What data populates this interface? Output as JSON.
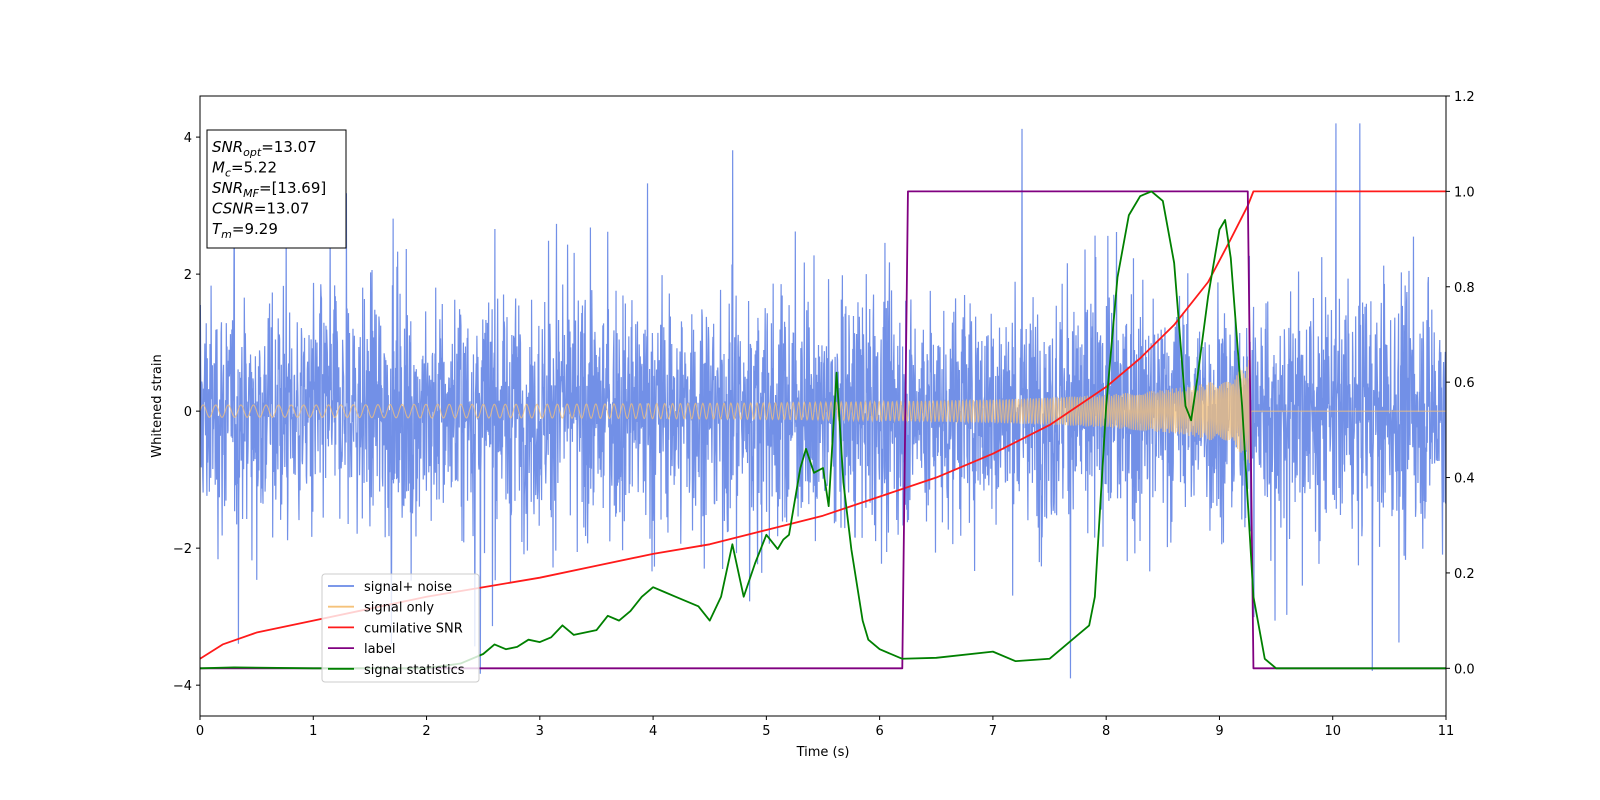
{
  "chart_data": {
    "type": "line",
    "title": "",
    "xlabel": "Time (s)",
    "ylabel": "Whitened strain",
    "xlim": [
      0,
      11
    ],
    "ylim": [
      -4.45,
      4.6
    ],
    "y2lim": [
      -0.1,
      1.2
    ],
    "xticks": [
      "0",
      "1",
      "2",
      "3",
      "4",
      "5",
      "6",
      "7",
      "8",
      "9",
      "10",
      "11"
    ],
    "yticks": [
      "−4",
      "−2",
      "0",
      "2",
      "4"
    ],
    "y2ticks": [
      "0.0",
      "0.2",
      "0.4",
      "0.6",
      "0.8",
      "1.0",
      "1.2"
    ],
    "grid": false,
    "legend_position": "lower-left",
    "info_box": {
      "position": "top-left",
      "lines": [
        {
          "sym": "SNR",
          "sub": "opt",
          "value": "=13.07"
        },
        {
          "sym": "M",
          "sub": "c",
          "value": "=5.22"
        },
        {
          "sym": "SNR",
          "sub": "MF",
          "value": "=[13.69]"
        },
        {
          "sym": "CSNR",
          "sub": "",
          "value": "=13.07"
        },
        {
          "sym": "T",
          "sub": "m",
          "value": "=9.29"
        }
      ]
    },
    "series": [
      {
        "name": "signal+ noise",
        "color": "#6a8ae6",
        "axis": "left",
        "style": "noise",
        "x_range": [
          0,
          11
        ],
        "baseline_band": [
          -1.8,
          1.8
        ],
        "peak_range": [
          -3.9,
          4.2
        ]
      },
      {
        "name": "signal only",
        "color": "#f5c27a",
        "axis": "left",
        "style": "chirp",
        "envelope": {
          "x": [
            0,
            1,
            2,
            3,
            4,
            5,
            6,
            7,
            7.5,
            8,
            8.5,
            8.8,
            9.0,
            9.1,
            9.2,
            9.28
          ],
          "amp": [
            0.09,
            0.09,
            0.1,
            0.1,
            0.11,
            0.12,
            0.14,
            0.17,
            0.2,
            0.24,
            0.31,
            0.38,
            0.46,
            0.52,
            0.62,
            0.8
          ]
        },
        "after_merger_value": 0
      },
      {
        "name": "cumilative SNR",
        "color": "#ff1a1a",
        "axis": "right",
        "x": [
          0,
          0.2,
          0.5,
          1,
          1.5,
          2,
          2.5,
          3,
          3.5,
          4,
          4.5,
          5,
          5.5,
          6,
          6.5,
          7,
          7.5,
          8,
          8.3,
          8.6,
          8.9,
          9.1,
          9.25,
          9.3,
          11
        ],
        "y": [
          0.02,
          0.05,
          0.075,
          0.1,
          0.125,
          0.15,
          0.17,
          0.19,
          0.215,
          0.24,
          0.26,
          0.29,
          0.32,
          0.36,
          0.4,
          0.45,
          0.51,
          0.59,
          0.65,
          0.72,
          0.81,
          0.9,
          0.97,
          1.0,
          1.0
        ]
      },
      {
        "name": "label",
        "color": "#800080",
        "axis": "right",
        "x": [
          0,
          6.2,
          6.25,
          9.25,
          9.3,
          11
        ],
        "y": [
          0,
          0,
          1,
          1,
          0,
          0
        ]
      },
      {
        "name": "signal statistics",
        "color": "#008000",
        "axis": "right",
        "x": [
          0,
          0.3,
          1,
          2,
          2.3,
          2.5,
          2.6,
          2.7,
          2.8,
          2.9,
          3.0,
          3.1,
          3.2,
          3.3,
          3.4,
          3.5,
          3.6,
          3.7,
          3.8,
          3.9,
          4.0,
          4.1,
          4.2,
          4.3,
          4.4,
          4.5,
          4.6,
          4.7,
          4.8,
          4.9,
          5.0,
          5.1,
          5.15,
          5.2,
          5.3,
          5.35,
          5.42,
          5.5,
          5.55,
          5.62,
          5.68,
          5.75,
          5.85,
          5.9,
          6.0,
          6.2,
          6.5,
          7.0,
          7.2,
          7.5,
          7.7,
          7.85,
          7.9,
          8.0,
          8.1,
          8.2,
          8.3,
          8.4,
          8.5,
          8.6,
          8.7,
          8.75,
          8.8,
          8.9,
          9.0,
          9.05,
          9.1,
          9.2,
          9.3,
          9.4,
          9.5,
          10,
          11
        ],
        "y": [
          0,
          0.002,
          0.0,
          0.0,
          0.01,
          0.03,
          0.05,
          0.04,
          0.045,
          0.06,
          0.055,
          0.065,
          0.09,
          0.07,
          0.075,
          0.08,
          0.11,
          0.1,
          0.12,
          0.15,
          0.17,
          0.16,
          0.15,
          0.14,
          0.13,
          0.1,
          0.15,
          0.26,
          0.15,
          0.22,
          0.28,
          0.25,
          0.27,
          0.28,
          0.42,
          0.46,
          0.41,
          0.42,
          0.34,
          0.62,
          0.39,
          0.25,
          0.1,
          0.06,
          0.04,
          0.02,
          0.022,
          0.035,
          0.015,
          0.02,
          0.06,
          0.09,
          0.15,
          0.55,
          0.82,
          0.95,
          0.99,
          1.0,
          0.98,
          0.85,
          0.55,
          0.52,
          0.6,
          0.78,
          0.92,
          0.94,
          0.86,
          0.55,
          0.15,
          0.02,
          0.0,
          0.0,
          0.0
        ]
      }
    ]
  }
}
